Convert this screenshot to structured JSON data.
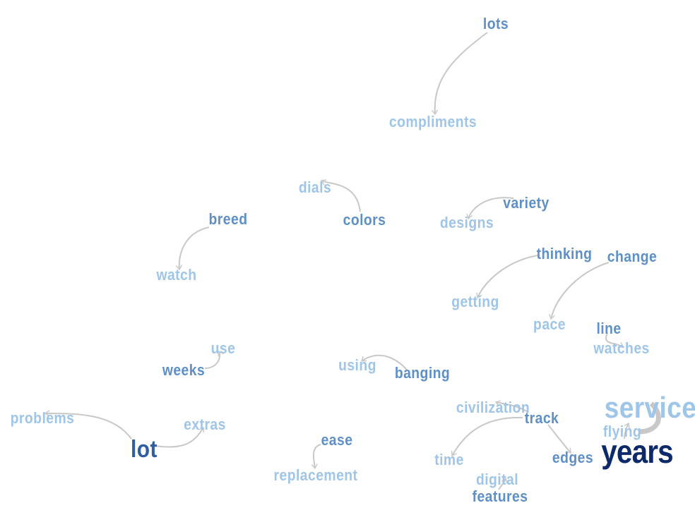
{
  "diagram": {
    "type": "word-tree",
    "colors": {
      "light": "#9fc5e8",
      "mid": "#5e8fc6",
      "dark": "#2f5fa3",
      "darkest": "#0c2a6a",
      "edge": "#c8c8c8"
    },
    "words": {
      "lots": "lots",
      "compliments": "compliments",
      "dials": "dials",
      "colors": "colors",
      "variety": "variety",
      "designs": "designs",
      "breed": "breed",
      "watch": "watch",
      "thinking": "thinking",
      "change": "change",
      "getting": "getting",
      "pace": "pace",
      "line": "line",
      "watches": "watches",
      "use": "use",
      "weeks": "weeks",
      "using": "using",
      "banging": "banging",
      "civilization": "civilization",
      "track": "track",
      "service": "service",
      "flying": "flying",
      "problems": "problems",
      "extras": "extras",
      "lot": "lot",
      "ease": "ease",
      "replacement": "replacement",
      "time": "time",
      "edges": "edges",
      "years": "years",
      "digital": "digital",
      "features": "features"
    },
    "links": [
      [
        "lots",
        "compliments"
      ],
      [
        "colors",
        "dials"
      ],
      [
        "variety",
        "designs"
      ],
      [
        "breed",
        "watch"
      ],
      [
        "thinking",
        "getting"
      ],
      [
        "change",
        "pace"
      ],
      [
        "line",
        "watches"
      ],
      [
        "weeks",
        "use"
      ],
      [
        "banging",
        "using"
      ],
      [
        "track",
        "civilization"
      ],
      [
        "track",
        "time"
      ],
      [
        "track",
        "edges"
      ],
      [
        "years",
        "service"
      ],
      [
        "years",
        "flying"
      ],
      [
        "lot",
        "problems"
      ],
      [
        "lot",
        "extras"
      ],
      [
        "ease",
        "replacement"
      ],
      [
        "features",
        "digital"
      ]
    ]
  }
}
